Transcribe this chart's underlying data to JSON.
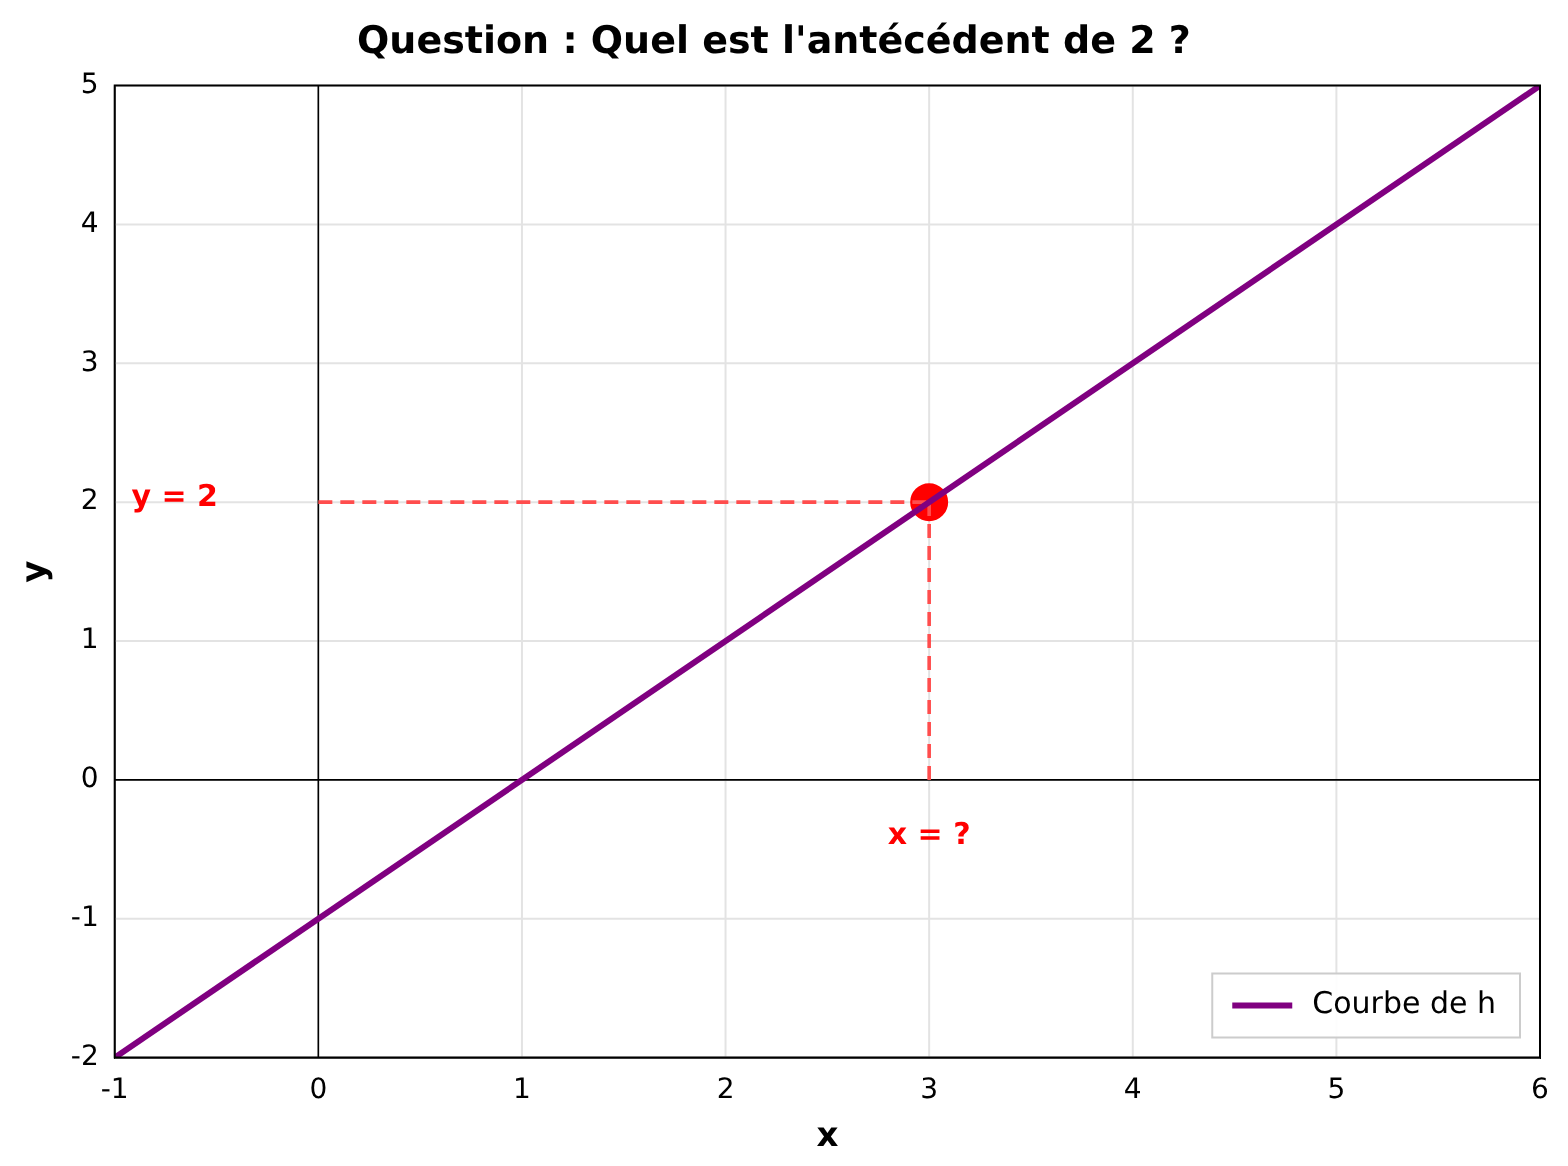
{
  "chart_data": {
    "type": "line",
    "title": "Question : Quel est l'antécédent de 2 ?",
    "xlabel": "x",
    "ylabel": "y",
    "series": [
      {
        "name": "Courbe de h",
        "type": "line",
        "color": "#800080",
        "x": [
          -1,
          6
        ],
        "values": [
          -2,
          5
        ]
      },
      {
        "type": "line",
        "color": "#ff4d4d",
        "line_style": "dashed",
        "x": [
          0,
          3
        ],
        "values": [
          2,
          2
        ]
      },
      {
        "type": "line",
        "color": "#ff4d4d",
        "line_style": "dashed",
        "x": [
          3,
          3
        ],
        "values": [
          0,
          2
        ]
      },
      {
        "type": "scatter",
        "color": "#ff0000",
        "marker": "circle",
        "x": [
          3
        ],
        "values": [
          2
        ]
      },
      {
        "type": "line",
        "color": "#000000",
        "line_style": "solid",
        "x": [
          0,
          0
        ],
        "values": [
          -2,
          5
        ]
      },
      {
        "type": "line",
        "color": "#000000",
        "line_style": "solid",
        "x": [
          -1,
          6
        ],
        "values": [
          0,
          0
        ]
      }
    ],
    "xlim": [
      -1,
      6
    ],
    "xticks": [
      -1,
      0,
      1,
      2,
      3,
      4,
      5,
      6
    ],
    "ylim": [
      -2,
      5
    ],
    "yticks": [
      -2,
      -1,
      0,
      1,
      2,
      3,
      4,
      5
    ],
    "annotations": [
      "y = 2",
      "x = ?"
    ],
    "grid": true,
    "legend": "bottom right"
  }
}
